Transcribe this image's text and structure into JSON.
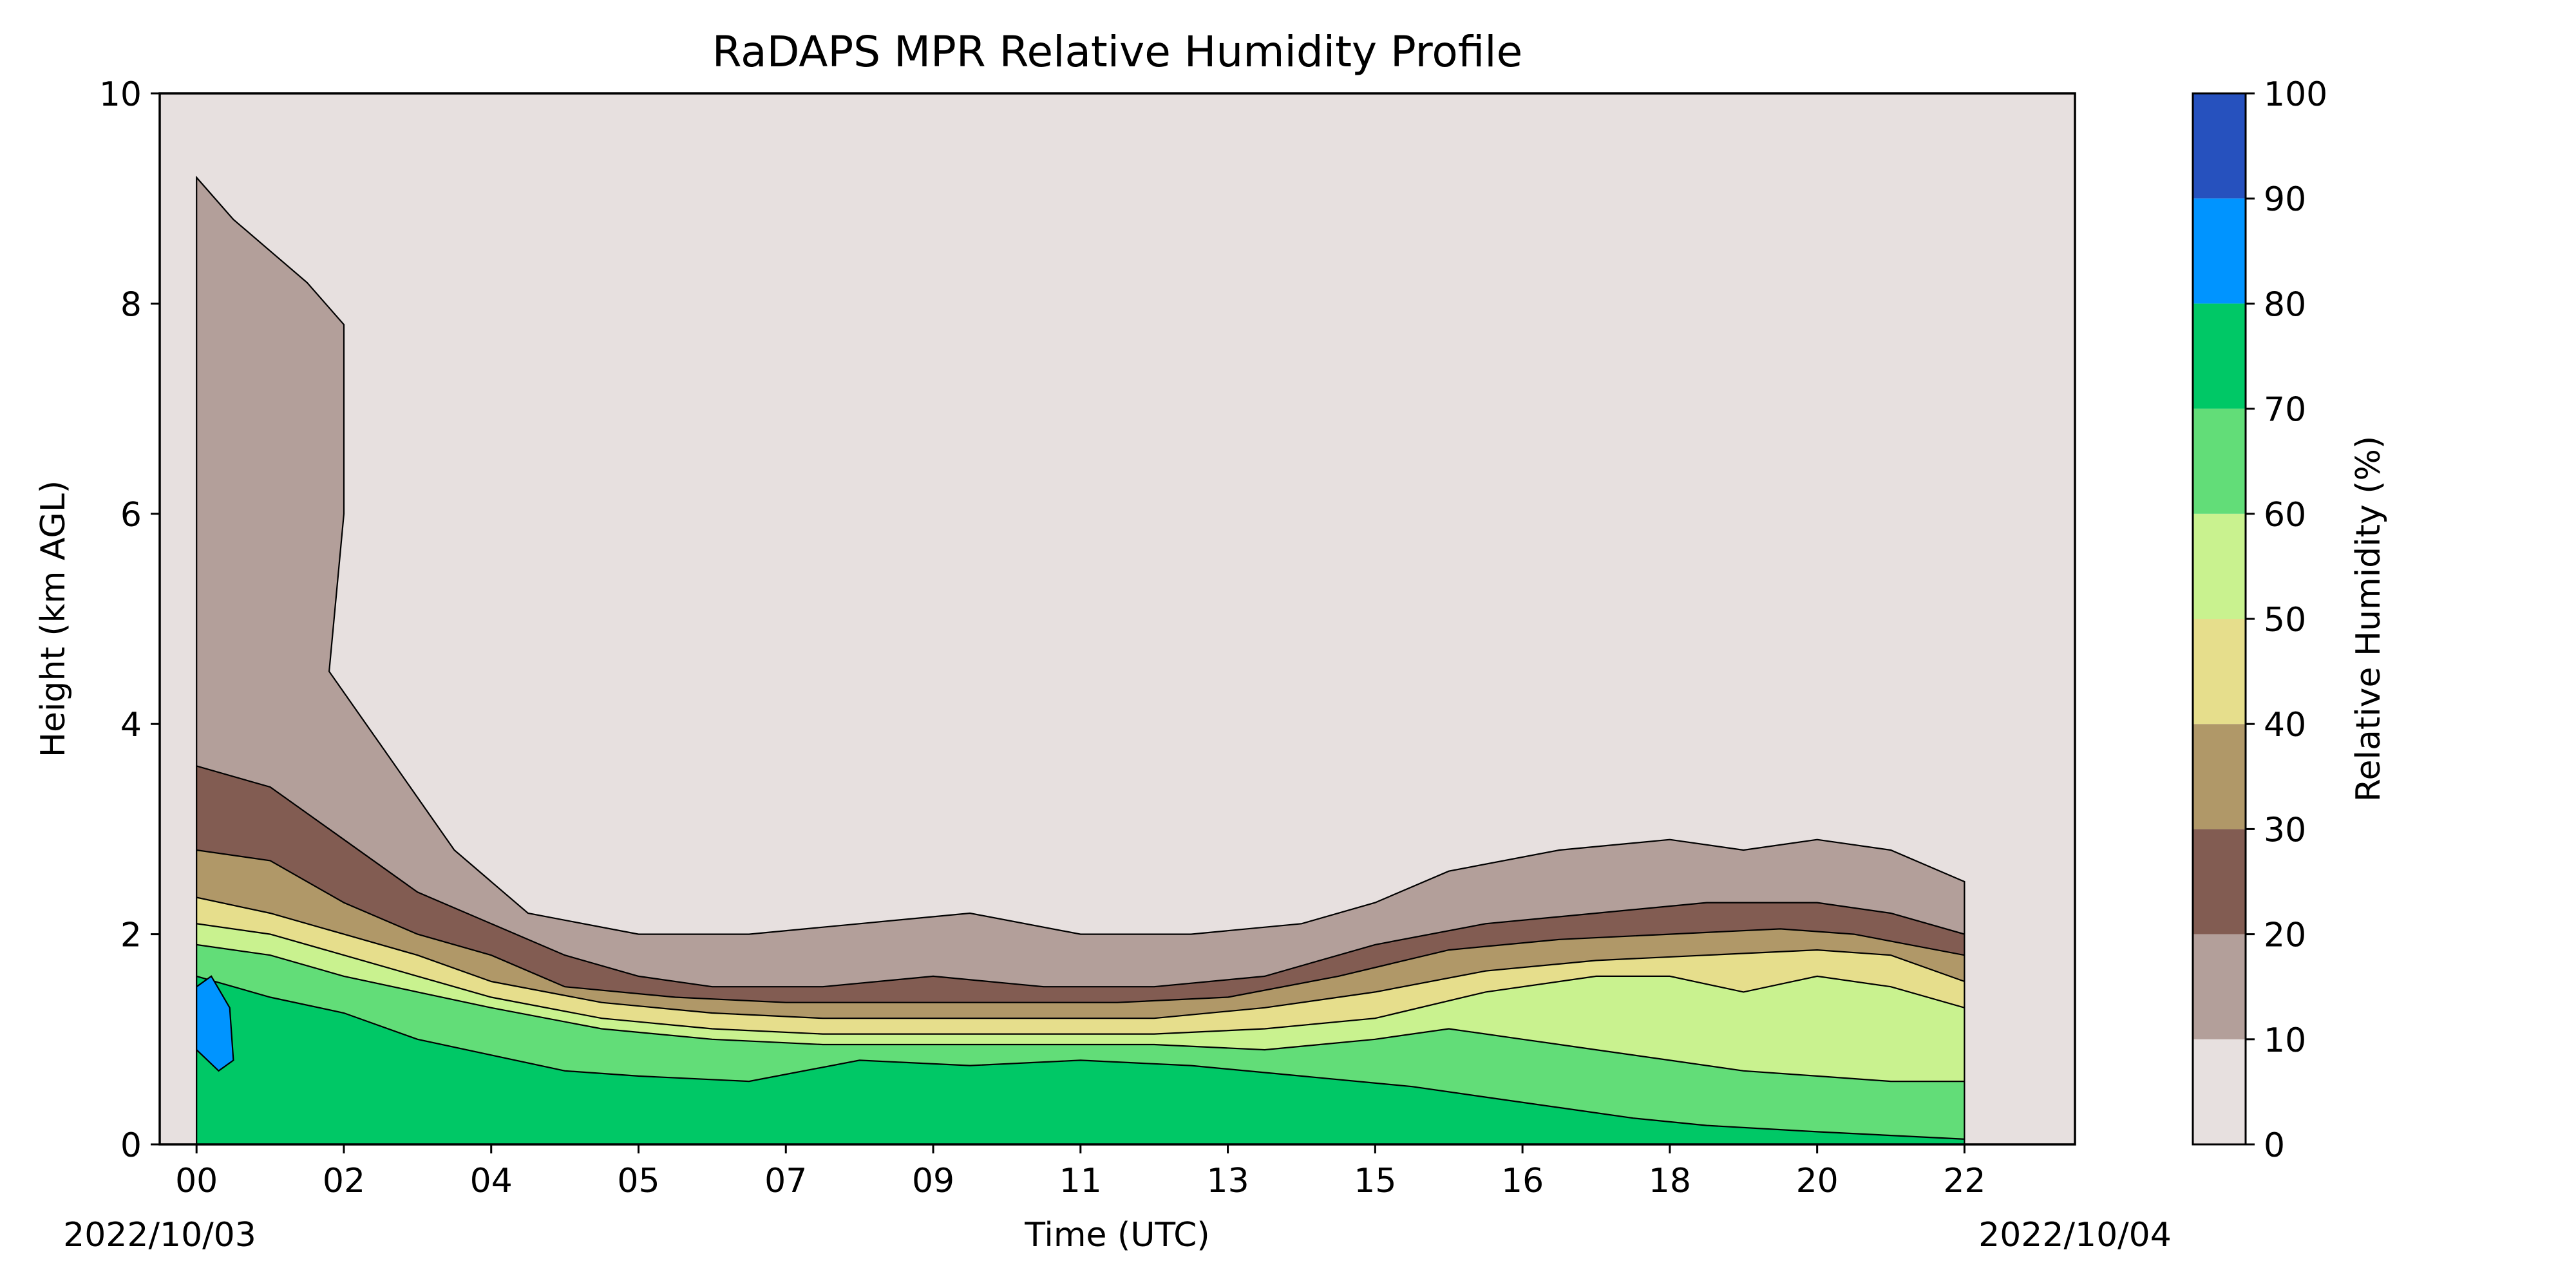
{
  "chart_data": {
    "type": "contour",
    "title": "RaDAPS MPR Relative Humidity Profile",
    "xlabel": "Time (UTC)",
    "ylabel": "Height (km AGL)",
    "colorbar_label": "Relative Humidity (%)",
    "start_date": "2022/10/03",
    "end_date": "2022/10/04",
    "x_tick_labels": [
      "00",
      "02",
      "04",
      "05",
      "07",
      "09",
      "11",
      "13",
      "15",
      "16",
      "18",
      "20",
      "22"
    ],
    "ylim": [
      0,
      10
    ],
    "y_ticks": [
      0,
      2,
      4,
      6,
      8,
      10
    ],
    "levels": [
      0,
      10,
      20,
      30,
      40,
      50,
      60,
      70,
      80,
      90,
      100
    ],
    "level_colors": [
      "#e7e0df",
      "#b39f9a",
      "#825c52",
      "#b09868",
      "#e6de8c",
      "#c9f28f",
      "#62dd78",
      "#00c866",
      "#0094ff",
      "#2651be"
    ],
    "contour_boundaries_km": [
      {
        "name": "RH 10%",
        "points": [
          [
            0.0,
            9.2
          ],
          [
            0.5,
            8.8
          ],
          [
            1.0,
            8.5
          ],
          [
            1.5,
            8.2
          ],
          [
            2.0,
            7.8
          ],
          [
            2.0,
            6.0
          ],
          [
            1.8,
            4.5
          ],
          [
            2.5,
            3.8
          ],
          [
            3.5,
            2.8
          ],
          [
            4.5,
            2.2
          ],
          [
            6.0,
            2.0
          ],
          [
            7.5,
            2.0
          ],
          [
            9.0,
            2.1
          ],
          [
            10.5,
            2.2
          ],
          [
            12.0,
            2.0
          ],
          [
            13.5,
            2.0
          ],
          [
            15.0,
            2.1
          ],
          [
            16.0,
            2.3
          ],
          [
            17.0,
            2.6
          ],
          [
            18.5,
            2.8
          ],
          [
            20.0,
            2.9
          ],
          [
            21.0,
            2.8
          ],
          [
            22.0,
            2.9
          ],
          [
            23.0,
            2.8
          ],
          [
            24.0,
            2.5
          ]
        ]
      },
      {
        "name": "RH 20%",
        "points": [
          [
            0.0,
            3.6
          ],
          [
            1.0,
            3.4
          ],
          [
            2.0,
            2.9
          ],
          [
            3.0,
            2.4
          ],
          [
            4.0,
            2.1
          ],
          [
            5.0,
            1.8
          ],
          [
            6.0,
            1.6
          ],
          [
            7.0,
            1.5
          ],
          [
            8.5,
            1.5
          ],
          [
            10.0,
            1.6
          ],
          [
            11.5,
            1.5
          ],
          [
            13.0,
            1.5
          ],
          [
            14.5,
            1.6
          ],
          [
            16.0,
            1.9
          ],
          [
            17.5,
            2.1
          ],
          [
            19.0,
            2.2
          ],
          [
            20.5,
            2.3
          ],
          [
            22.0,
            2.3
          ],
          [
            23.0,
            2.2
          ],
          [
            24.0,
            2.0
          ]
        ]
      },
      {
        "name": "RH 30%",
        "points": [
          [
            0.0,
            2.8
          ],
          [
            1.0,
            2.7
          ],
          [
            2.0,
            2.3
          ],
          [
            3.0,
            2.0
          ],
          [
            4.0,
            1.8
          ],
          [
            5.0,
            1.5
          ],
          [
            6.5,
            1.4
          ],
          [
            8.0,
            1.35
          ],
          [
            9.5,
            1.35
          ],
          [
            11.0,
            1.35
          ],
          [
            12.5,
            1.35
          ],
          [
            14.0,
            1.4
          ],
          [
            15.5,
            1.6
          ],
          [
            17.0,
            1.85
          ],
          [
            18.5,
            1.95
          ],
          [
            20.0,
            2.0
          ],
          [
            21.5,
            2.05
          ],
          [
            22.5,
            2.0
          ],
          [
            24.0,
            1.8
          ]
        ]
      },
      {
        "name": "RH 40%",
        "points": [
          [
            0.0,
            2.35
          ],
          [
            1.0,
            2.2
          ],
          [
            2.0,
            2.0
          ],
          [
            3.0,
            1.8
          ],
          [
            4.0,
            1.55
          ],
          [
            5.5,
            1.35
          ],
          [
            7.0,
            1.25
          ],
          [
            8.5,
            1.2
          ],
          [
            10.0,
            1.2
          ],
          [
            11.5,
            1.2
          ],
          [
            13.0,
            1.2
          ],
          [
            14.5,
            1.3
          ],
          [
            16.0,
            1.45
          ],
          [
            17.5,
            1.65
          ],
          [
            19.0,
            1.75
          ],
          [
            20.5,
            1.8
          ],
          [
            22.0,
            1.85
          ],
          [
            23.0,
            1.8
          ],
          [
            24.0,
            1.55
          ]
        ]
      },
      {
        "name": "RH 50%",
        "points": [
          [
            0.0,
            2.1
          ],
          [
            1.0,
            2.0
          ],
          [
            2.0,
            1.8
          ],
          [
            3.0,
            1.6
          ],
          [
            4.0,
            1.4
          ],
          [
            5.5,
            1.2
          ],
          [
            7.0,
            1.1
          ],
          [
            8.5,
            1.05
          ],
          [
            10.0,
            1.05
          ],
          [
            11.5,
            1.05
          ],
          [
            13.0,
            1.05
          ],
          [
            14.5,
            1.1
          ],
          [
            16.0,
            1.2
          ],
          [
            17.5,
            1.45
          ],
          [
            19.0,
            1.6
          ],
          [
            20.0,
            1.6
          ],
          [
            21.0,
            1.45
          ],
          [
            22.0,
            1.6
          ],
          [
            23.0,
            1.5
          ],
          [
            24.0,
            1.3
          ]
        ]
      },
      {
        "name": "RH 60%",
        "points": [
          [
            0.0,
            1.9
          ],
          [
            1.0,
            1.8
          ],
          [
            2.0,
            1.6
          ],
          [
            3.0,
            1.45
          ],
          [
            4.0,
            1.3
          ],
          [
            5.5,
            1.1
          ],
          [
            7.0,
            1.0
          ],
          [
            8.5,
            0.95
          ],
          [
            10.0,
            0.95
          ],
          [
            11.5,
            0.95
          ],
          [
            13.0,
            0.95
          ],
          [
            14.5,
            0.9
          ],
          [
            16.0,
            1.0
          ],
          [
            17.0,
            1.1
          ],
          [
            18.0,
            1.0
          ],
          [
            19.0,
            0.9
          ],
          [
            20.0,
            0.8
          ],
          [
            21.0,
            0.7
          ],
          [
            22.0,
            0.65
          ],
          [
            23.0,
            0.6
          ],
          [
            24.0,
            0.6
          ]
        ]
      },
      {
        "name": "RH 70%",
        "points": [
          [
            0.0,
            1.6
          ],
          [
            1.0,
            1.4
          ],
          [
            2.0,
            1.25
          ],
          [
            3.0,
            1.0
          ],
          [
            4.0,
            0.85
          ],
          [
            5.0,
            0.7
          ],
          [
            6.0,
            0.65
          ],
          [
            7.5,
            0.6
          ],
          [
            9.0,
            0.8
          ],
          [
            10.5,
            0.75
          ],
          [
            12.0,
            0.8
          ],
          [
            13.5,
            0.75
          ],
          [
            15.0,
            0.65
          ],
          [
            16.5,
            0.55
          ],
          [
            17.5,
            0.45
          ],
          [
            18.5,
            0.35
          ],
          [
            19.5,
            0.25
          ],
          [
            20.5,
            0.18
          ],
          [
            22.0,
            0.12
          ],
          [
            24.0,
            0.05
          ]
        ]
      },
      {
        "name": "RH 80%",
        "points": [
          [
            0.0,
            1.5
          ],
          [
            0.2,
            1.6
          ],
          [
            0.45,
            1.3
          ],
          [
            0.5,
            0.8
          ],
          [
            0.3,
            0.7
          ],
          [
            0.0,
            0.9
          ]
        ]
      }
    ]
  }
}
